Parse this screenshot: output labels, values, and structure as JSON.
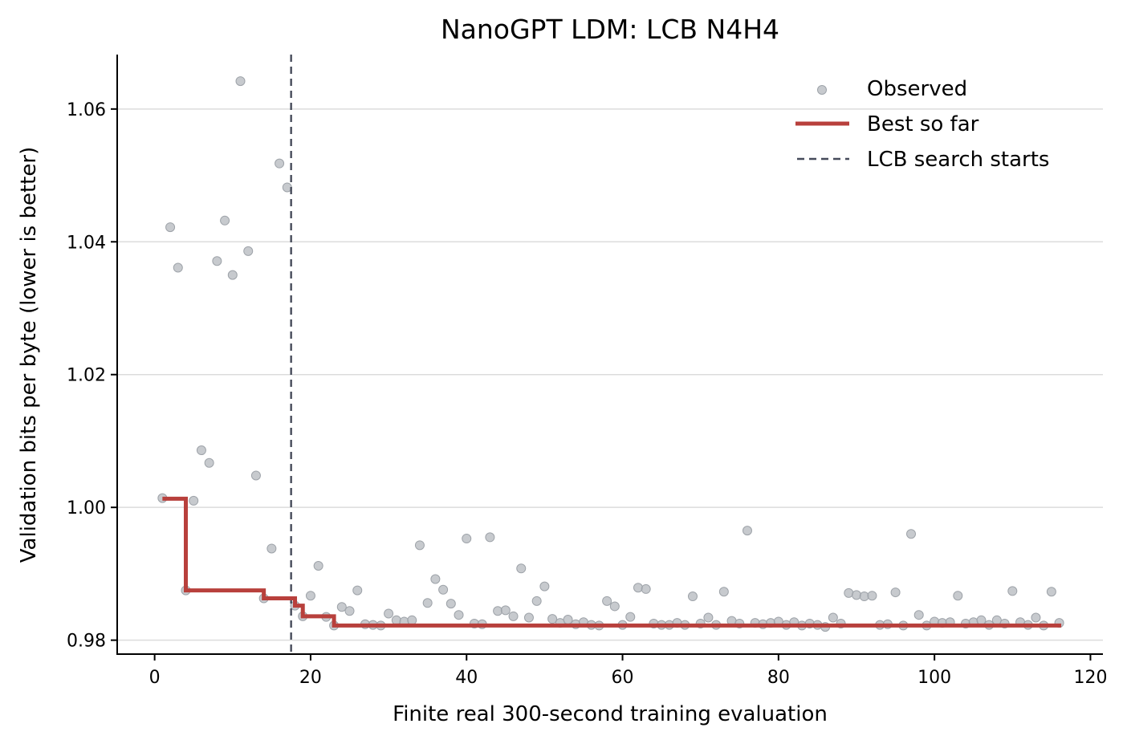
{
  "chart_data": {
    "type": "scatter",
    "title": "NanoGPT LDM: LCB N4H4",
    "xlabel": "Finite real 300-second training evaluation",
    "ylabel": "Validation bits per byte (lower is better)",
    "xlim": [
      -4.8,
      121.6
    ],
    "ylim": [
      0.9779,
      1.0682
    ],
    "xticks": [
      0,
      20,
      40,
      60,
      80,
      100,
      120
    ],
    "yticks": [
      0.98,
      1.0,
      1.02,
      1.04,
      1.06
    ],
    "ytick_labels": [
      "0.98",
      "1.00",
      "1.02",
      "1.04",
      "1.06"
    ],
    "grid": "y",
    "legend_position": "top-right",
    "legend": [
      "Observed",
      "Best so far",
      "LCB search starts"
    ],
    "colors": {
      "observed": "#b4b8bd",
      "best": "#b8403c",
      "vline": "#464b5a"
    },
    "vline_x": 17.5,
    "series": [
      {
        "name": "Observed",
        "x": [
          1,
          2,
          3,
          4,
          5,
          6,
          7,
          8,
          9,
          10,
          11,
          12,
          13,
          14,
          15,
          16,
          17,
          18,
          19,
          20,
          21,
          22,
          23,
          24,
          25,
          26,
          27,
          28,
          29,
          30,
          31,
          32,
          33,
          34,
          35,
          36,
          37,
          38,
          39,
          40,
          41,
          42,
          43,
          44,
          45,
          46,
          47,
          48,
          49,
          50,
          51,
          52,
          53,
          54,
          55,
          56,
          57,
          58,
          59,
          60,
          61,
          62,
          63,
          64,
          65,
          66,
          67,
          68,
          69,
          70,
          71,
          72,
          73,
          74,
          75,
          76,
          77,
          78,
          79,
          80,
          81,
          82,
          83,
          84,
          85,
          86,
          87,
          88,
          89,
          90,
          91,
          92,
          93,
          94,
          95,
          96,
          97,
          98,
          99,
          100,
          101,
          102,
          103,
          104,
          105,
          106,
          107,
          108,
          109,
          110,
          111,
          112,
          113,
          114,
          115,
          116
        ],
        "y": [
          1.0014,
          1.0422,
          1.0361,
          0.9875,
          1.001,
          1.0086,
          1.0067,
          1.0371,
          1.0432,
          1.035,
          1.0642,
          1.0386,
          1.0048,
          0.9863,
          0.9938,
          1.0518,
          1.0482,
          0.9852,
          0.9836,
          0.9867,
          0.9912,
          0.9835,
          0.9822,
          0.985,
          0.9844,
          0.9875,
          0.9824,
          0.9823,
          0.9822,
          0.984,
          0.983,
          0.9828,
          0.983,
          0.9943,
          0.9856,
          0.9892,
          0.9876,
          0.9855,
          0.9838,
          0.9953,
          0.9825,
          0.9824,
          0.9955,
          0.9844,
          0.9845,
          0.9836,
          0.9908,
          0.9834,
          0.9859,
          0.9881,
          0.9832,
          0.9826,
          0.9831,
          0.9824,
          0.9827,
          0.9823,
          0.9822,
          0.9859,
          0.9851,
          0.9823,
          0.9835,
          0.9879,
          0.9877,
          0.9825,
          0.9823,
          0.9823,
          0.9826,
          0.9823,
          0.9866,
          0.9825,
          0.9834,
          0.9823,
          0.9873,
          0.9829,
          0.9825,
          0.9965,
          0.9826,
          0.9824,
          0.9826,
          0.9828,
          0.9823,
          0.9827,
          0.9822,
          0.9825,
          0.9823,
          0.982,
          0.9834,
          0.9825,
          0.9871,
          0.9868,
          0.9866,
          0.9867,
          0.9823,
          0.9824,
          0.9872,
          0.9822,
          0.996,
          0.9838,
          0.9822,
          0.9828,
          0.9826,
          0.9827,
          0.9867,
          0.9825,
          0.9827,
          0.983,
          0.9823,
          0.983,
          0.9825,
          0.9874,
          0.9827,
          0.9823,
          0.9834,
          0.9822,
          0.9873,
          0.9826
        ]
      },
      {
        "name": "Best so far",
        "x": [
          1,
          4,
          14,
          18,
          19,
          23,
          30,
          116
        ],
        "y": [
          1.0013,
          0.9875,
          0.9863,
          0.9852,
          0.9836,
          0.9822,
          0.9822,
          0.9819
        ]
      }
    ]
  }
}
